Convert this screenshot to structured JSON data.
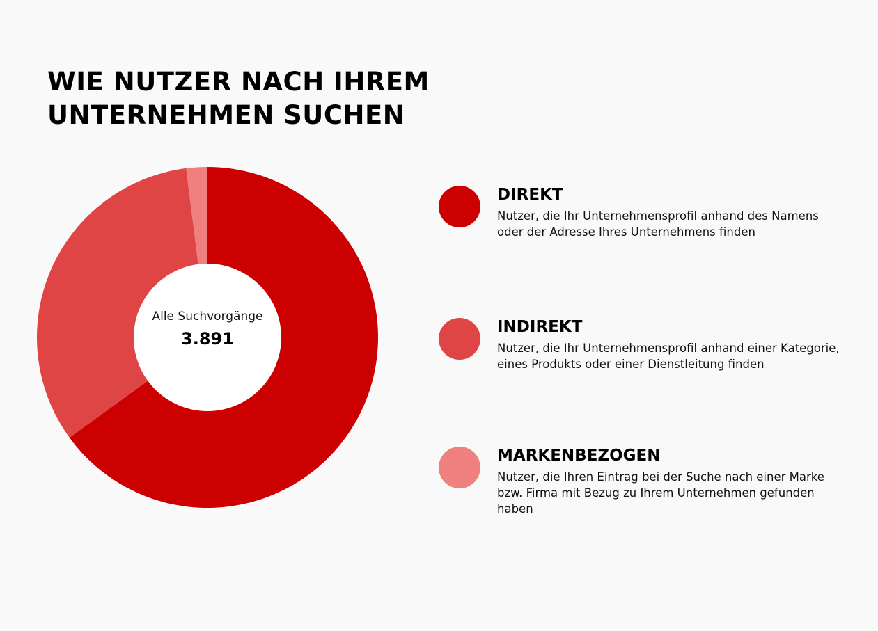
{
  "chart_data": {
    "type": "pie",
    "title": "WIE NUTZER NACH IHREM UNTERNEHMEN SUCHEN",
    "center_label": "Alle Suchvorgänge",
    "total": {
      "value": 3891,
      "label": "3.891"
    },
    "categories": [
      "DIREKT",
      "INDIREKT",
      "MARKENBEZOGEN"
    ],
    "descriptions": [
      "Nutzer, die Ihr Unternehmensprofil anhand des Namens oder der Adresse Ihres Unternehmens finden",
      "Nutzer, die Ihr Unternehmensprofil anhand einer Kategorie, eines Produkts oder einer Dienstleitung finden",
      "Nutzer, die Ihren Eintrag bei der Suche nach einer Marke bzw. Firma mit Bezug zu Ihrem Unternehmen gefunden haben"
    ],
    "values": [
      65,
      33,
      2
    ],
    "colors": [
      "#cc0000",
      "#e04545",
      "#f08080"
    ]
  }
}
